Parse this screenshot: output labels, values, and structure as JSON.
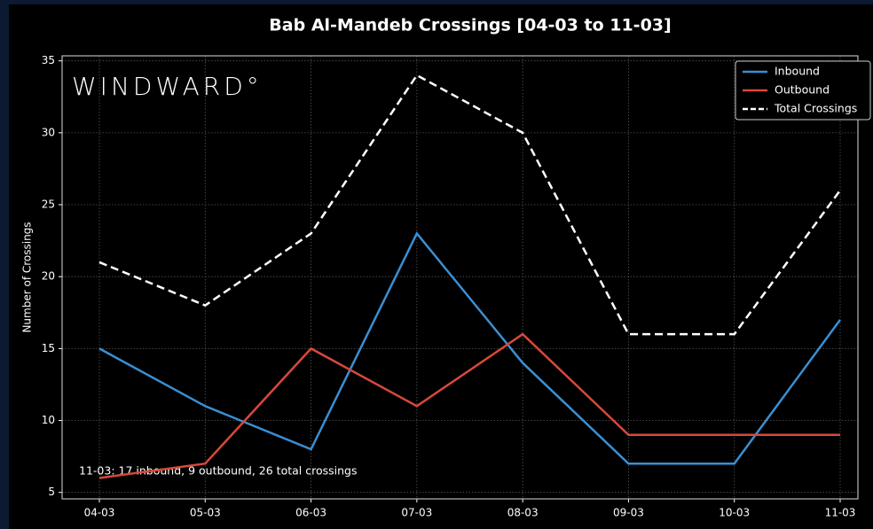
{
  "chart_data": {
    "type": "line",
    "title": "Bab Al-Mandeb Crossings [04-03 to 11-03]",
    "ylabel": "Number of Crossings",
    "watermark": "WINDWARD°",
    "annotation": "11-03: 17 inbound, 9 outbound, 26 total crossings",
    "categories": [
      "04-03",
      "05-03",
      "06-03",
      "07-03",
      "08-03",
      "09-03",
      "10-03",
      "11-03"
    ],
    "series": [
      {
        "name": "Inbound",
        "color": "#3a8fd3",
        "dash": false,
        "values": [
          15,
          11,
          8,
          23,
          14,
          7,
          7,
          17
        ]
      },
      {
        "name": "Outbound",
        "color": "#d9483b",
        "dash": false,
        "values": [
          6,
          7,
          15,
          11,
          16,
          9,
          9,
          9
        ]
      },
      {
        "name": "Total Crossings",
        "color": "#ffffff",
        "dash": true,
        "values": [
          21,
          18,
          23,
          34,
          30,
          16,
          16,
          26
        ]
      }
    ],
    "ylim": [
      4.55,
      35.35
    ],
    "yticks": [
      5,
      10,
      15,
      20,
      25,
      30,
      35
    ],
    "grid": true,
    "legend": "upper right"
  }
}
